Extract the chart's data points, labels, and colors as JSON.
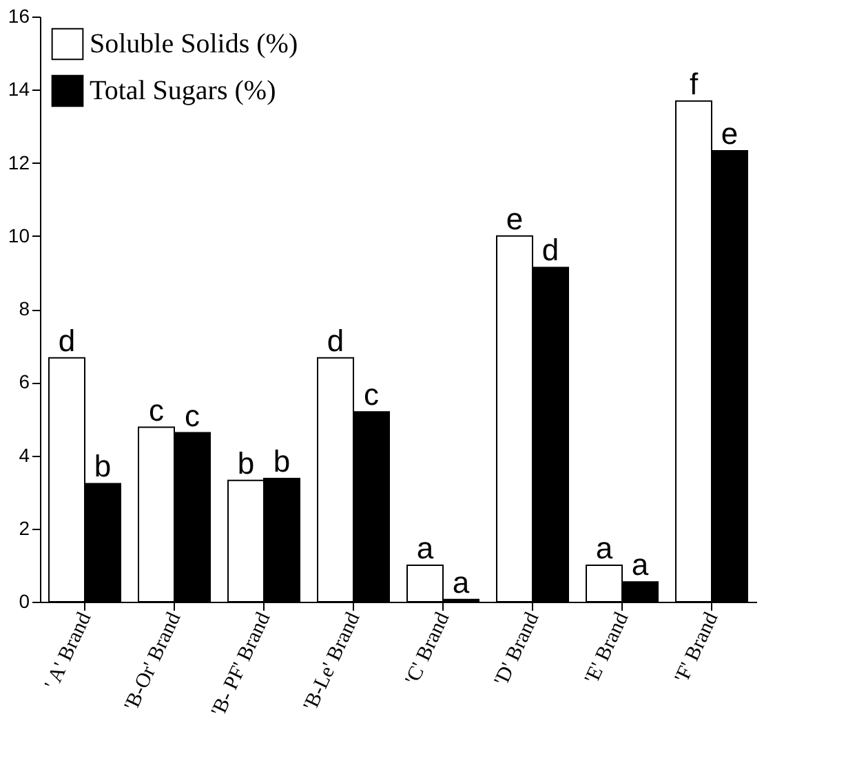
{
  "chart_data": {
    "type": "bar",
    "categories": [
      "' A' Brand",
      "'B-Or' Brand",
      "'B- PF' Brand",
      "'B-Le' Brand",
      "'C' Brand",
      "'D' Brand",
      "'E' Brand",
      "'F' Brand"
    ],
    "series": [
      {
        "name": "Soluble Solids (%)",
        "color": "#ffffff",
        "values": [
          6.67,
          4.77,
          3.32,
          6.67,
          1.0,
          10.0,
          1.0,
          13.69
        ],
        "value_labels": [
          "d",
          "c",
          "b",
          "d",
          "a",
          "e",
          "a",
          "f"
        ]
      },
      {
        "name": "Total Sugars (%)",
        "color": "#000000",
        "values": [
          3.23,
          4.62,
          3.37,
          5.19,
          0.06,
          9.14,
          0.54,
          12.33
        ],
        "value_labels": [
          "b",
          "c",
          "b",
          "c",
          "a",
          "d",
          "a",
          "e"
        ]
      }
    ],
    "ylim": [
      0,
      16
    ],
    "yticks": [
      0,
      2,
      4,
      6,
      8,
      10,
      12,
      14,
      16
    ],
    "grid": false,
    "legend": "top left"
  }
}
